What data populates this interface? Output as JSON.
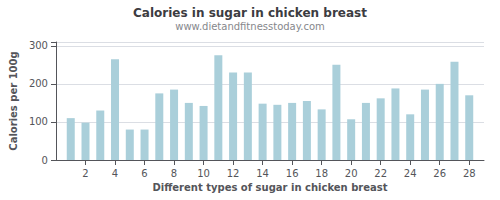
{
  "chart_data": {
    "type": "bar",
    "title": "Calories in sugar in chicken breast",
    "subtitle": "www.dietandfitnesstoday.com",
    "xlabel": "Different types of sugar in chicken breast",
    "ylabel": "Calories per 100g",
    "x": [
      1,
      2,
      3,
      4,
      5,
      6,
      7,
      8,
      9,
      10,
      11,
      12,
      13,
      14,
      15,
      16,
      17,
      18,
      19,
      20,
      21,
      22,
      23,
      24,
      25,
      26,
      27,
      28
    ],
    "values": [
      110,
      98,
      130,
      265,
      80,
      80,
      175,
      185,
      150,
      142,
      275,
      230,
      230,
      148,
      145,
      150,
      155,
      133,
      250,
      107,
      150,
      162,
      188,
      120,
      185,
      200,
      258,
      170
    ],
    "color": "#aacfda",
    "xlim": [
      0.0,
      29.0
    ],
    "xticks": [
      2,
      4,
      6,
      8,
      10,
      12,
      14,
      16,
      18,
      20,
      22,
      24,
      26,
      28
    ],
    "ylim": [
      0,
      310
    ],
    "yticks": [
      0,
      100,
      200,
      300
    ],
    "grid": true
  }
}
